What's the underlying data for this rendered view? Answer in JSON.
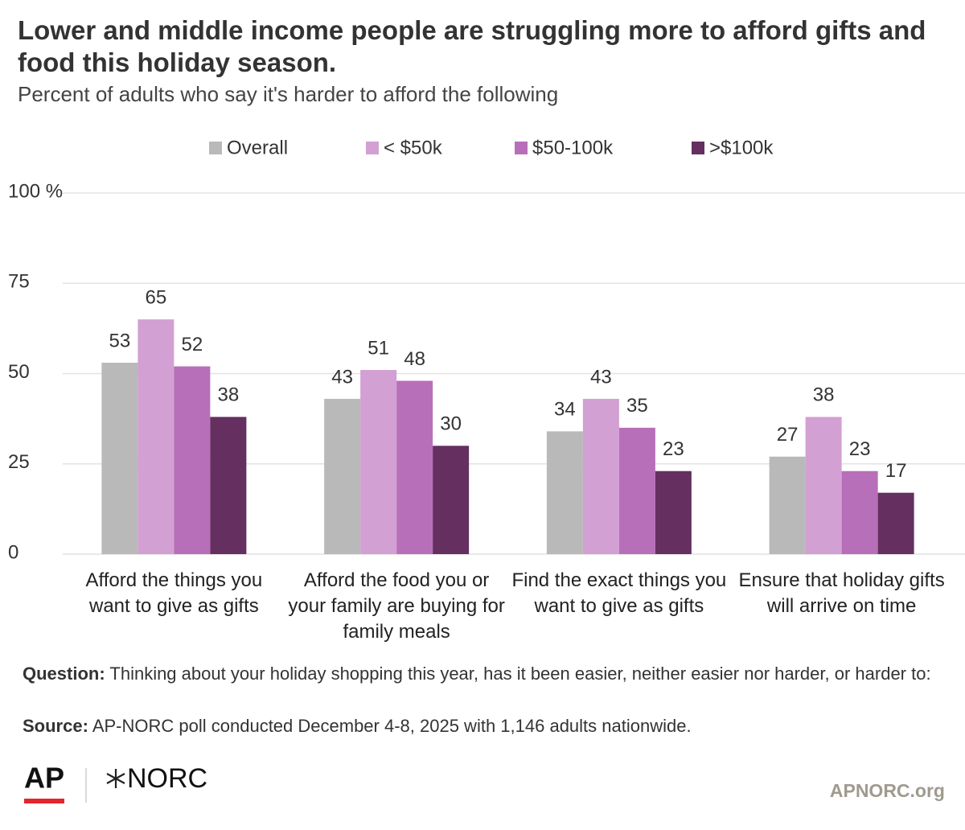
{
  "chart_data": {
    "type": "bar",
    "title": "Lower and middle income people are struggling more to afford gifts and food this holiday season.",
    "subtitle": "Percent of adults who say it's harder to afford the following",
    "categories": [
      "Afford the things you want to give as gifts",
      "Afford the food you or your family are buying for family meals",
      "Find the exact things you want to give as gifts",
      "Ensure that holiday gifts will arrive on time"
    ],
    "series": [
      {
        "name": "Overall",
        "color": "#b9b9b9",
        "values": [
          53,
          43,
          34,
          27
        ]
      },
      {
        "name": "< $50k",
        "color": "#d3a0d3",
        "values": [
          65,
          51,
          43,
          38
        ]
      },
      {
        "name": "$50-100k",
        "color": "#b86fb9",
        "values": [
          52,
          48,
          35,
          23
        ]
      },
      {
        "name": ">$100k",
        "color": "#652f60",
        "values": [
          38,
          30,
          23,
          17
        ]
      }
    ],
    "ylim": [
      0,
      100
    ],
    "yticks": [
      0,
      25,
      50,
      75,
      {
        "value": 100,
        "label": "100 %"
      }
    ],
    "grid": true,
    "legend": "top"
  },
  "footer": {
    "question_label": "Question:",
    "question": "Thinking about your holiday shopping this year, has it been easier, neither easier nor harder, or harder to:",
    "source_label": "Source:",
    "source": "AP-NORC poll conducted December 4-8, 2025 with 1,146 adults nationwide.",
    "logo_ap": "AP",
    "logo_norc": "NORC",
    "website": "APNORC.org"
  }
}
